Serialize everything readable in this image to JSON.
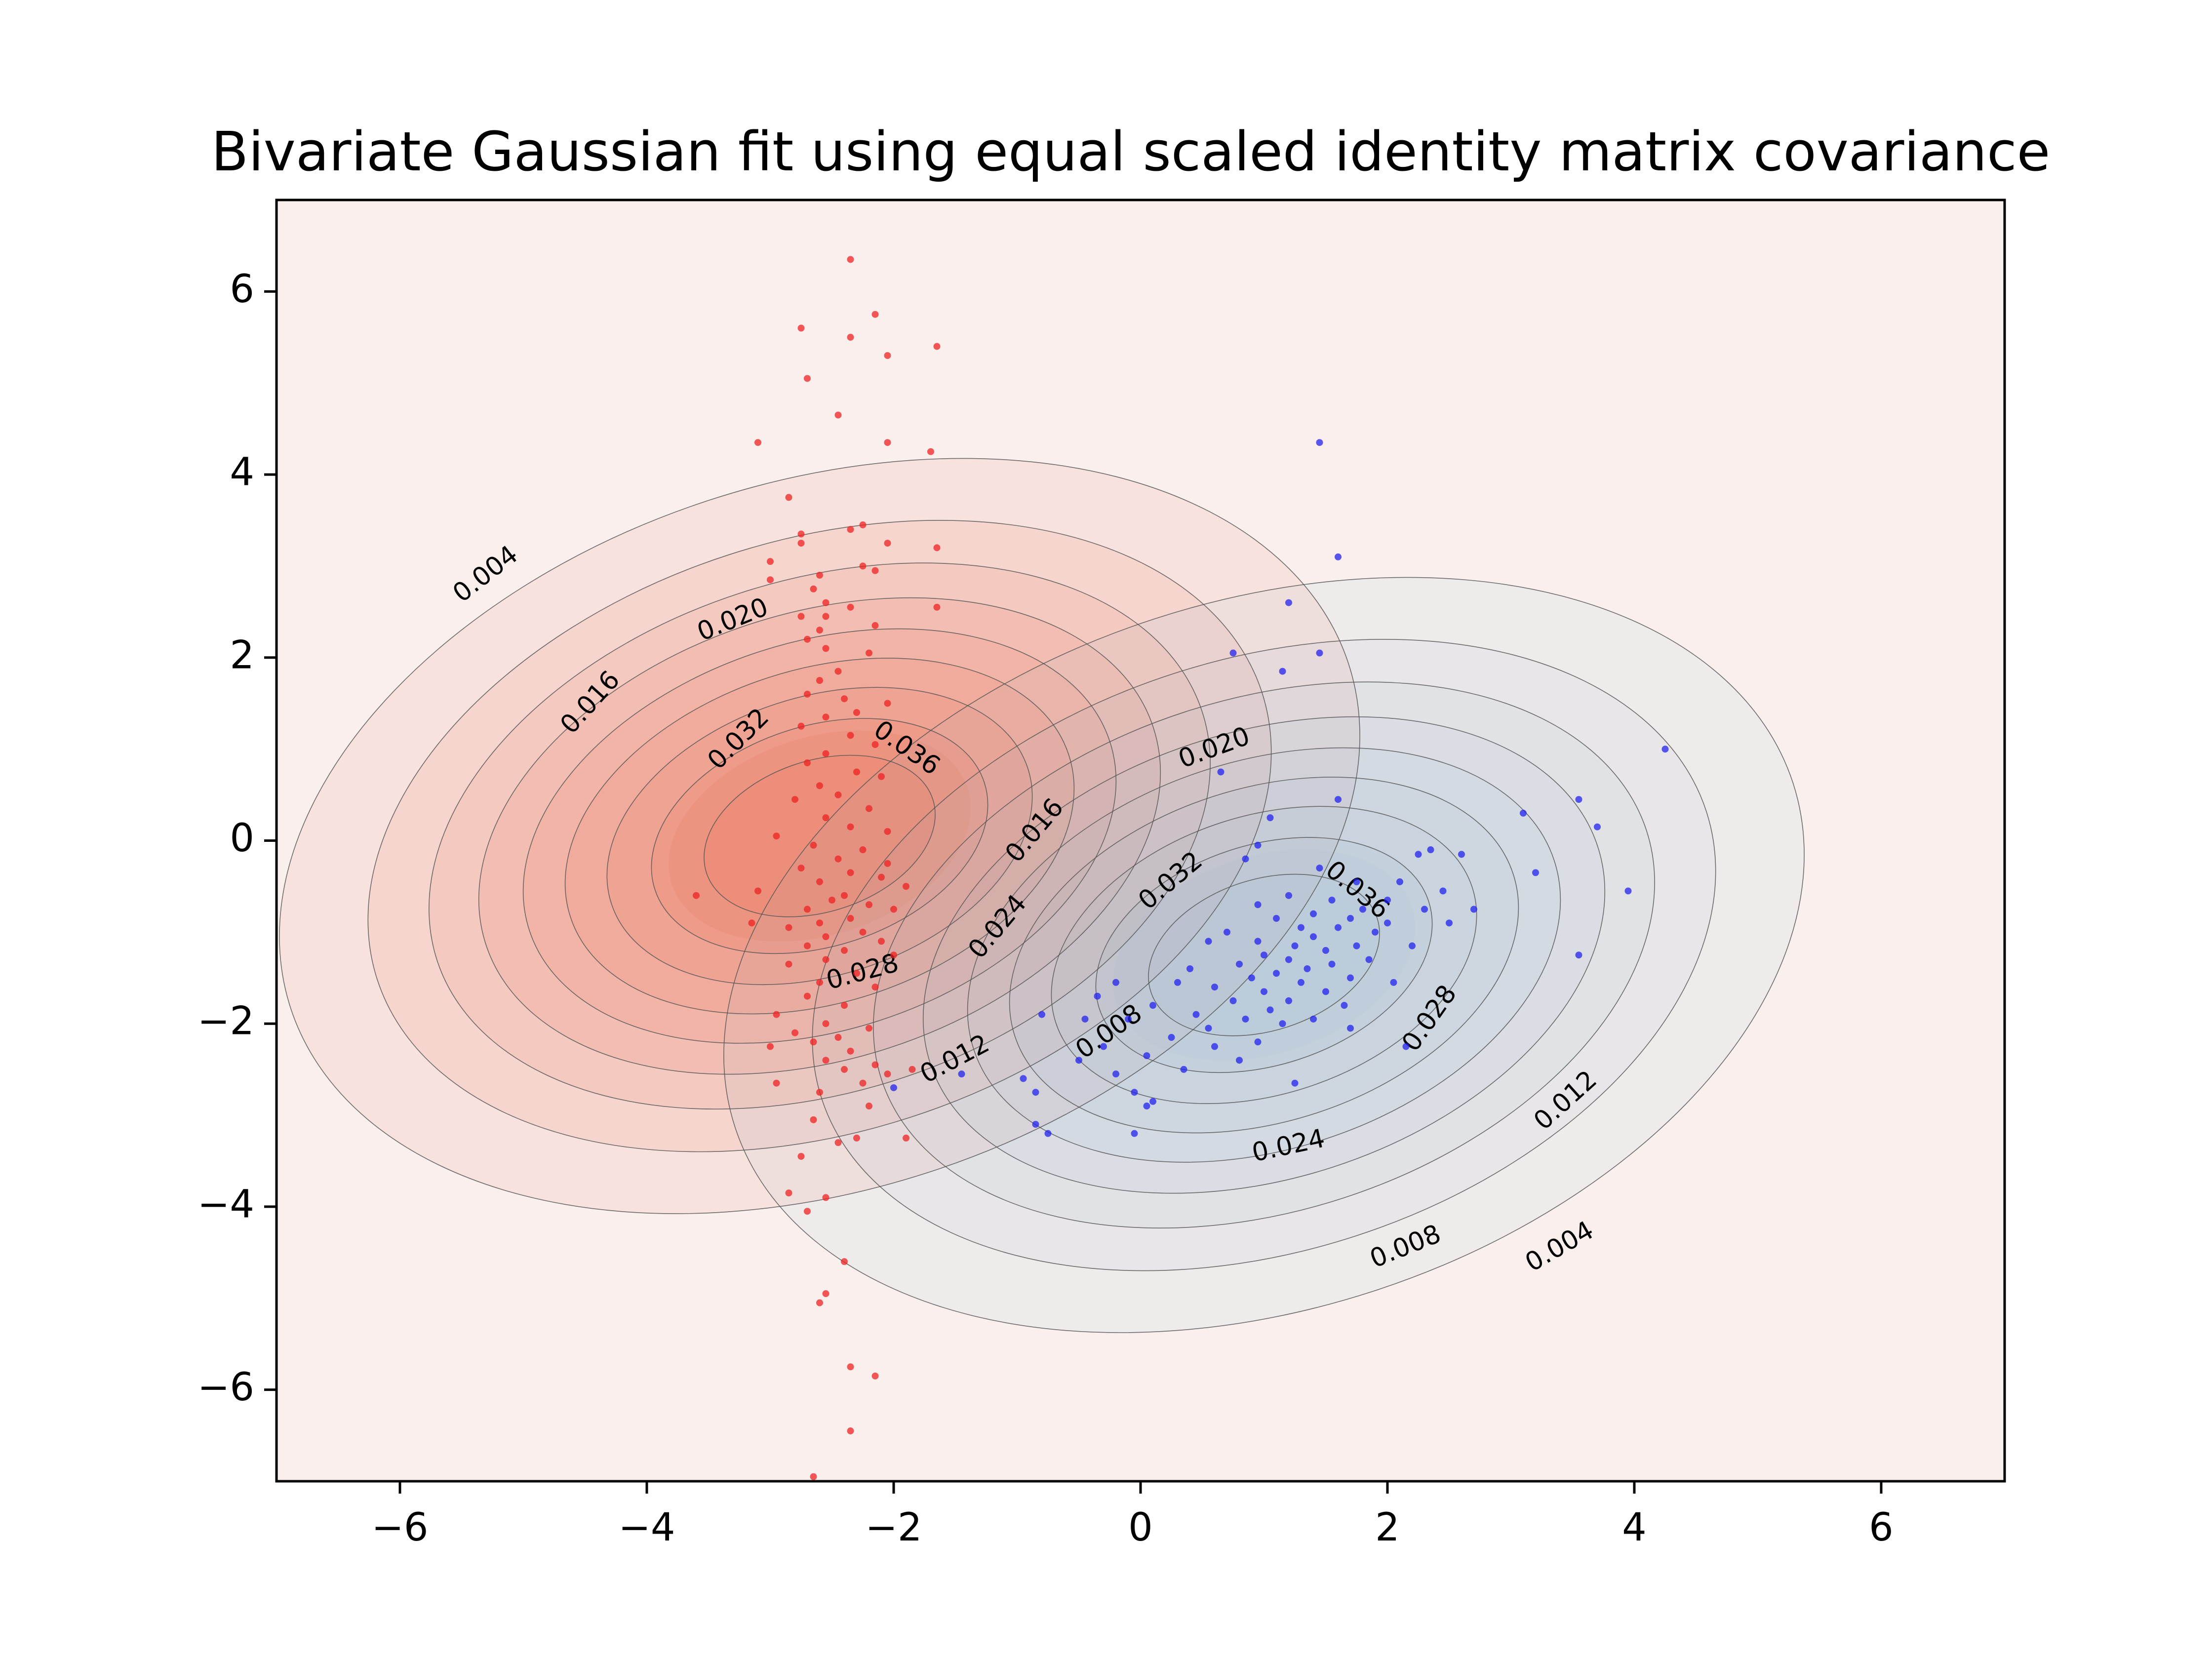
{
  "chart_data": {
    "type": "scatter",
    "title": "Bivariate Gaussian fit using equal scaled identity matrix covariance",
    "xlabel": "",
    "ylabel": "",
    "xlim": [
      -7,
      7
    ],
    "ylim": [
      -7,
      7
    ],
    "x_ticks": [
      -6,
      -4,
      -2,
      0,
      2,
      4,
      6
    ],
    "y_ticks": [
      -6,
      -4,
      -2,
      0,
      2,
      4,
      6
    ],
    "x_tick_labels": [
      "−6",
      "−4",
      "−2",
      "0",
      "2",
      "4",
      "6"
    ],
    "y_tick_labels": [
      "−6",
      "−4",
      "−2",
      "0",
      "2",
      "4",
      "6"
    ],
    "background_color": "#f9f0ee",
    "grid": false,
    "legend": "none",
    "contour_levels": [
      0.004,
      0.008,
      0.012,
      0.016,
      0.02,
      0.024,
      0.028,
      0.032,
      0.036
    ],
    "contour_line_color": "#555555",
    "distributions": [
      {
        "color": "#e8502c",
        "point_color": "#ee2222",
        "fit_center": [
          -2.6,
          0.05
        ],
        "fit_scale_x": 2.1,
        "fit_scale_y": 1.8,
        "orientation_deg": 18
      },
      {
        "color": "#9ab7d5",
        "point_color": "#2222ee",
        "fit_center": [
          1.0,
          -1.25
        ],
        "fit_scale_x": 2.1,
        "fit_scale_y": 1.8,
        "orientation_deg": 18
      }
    ],
    "contour_labels": [
      {
        "text": "0.004",
        "x": -5.3,
        "y": 2.9,
        "angle": -38
      },
      {
        "text": "0.020",
        "x": -3.3,
        "y": 2.4,
        "angle": -22
      },
      {
        "text": "0.016",
        "x": -4.45,
        "y": 1.5,
        "angle": -48
      },
      {
        "text": "0.032",
        "x": -3.25,
        "y": 1.1,
        "angle": -45
      },
      {
        "text": "0.036",
        "x": -1.9,
        "y": 1.0,
        "angle": 35
      },
      {
        "text": "0.016",
        "x": -0.85,
        "y": 0.1,
        "angle": -50
      },
      {
        "text": "0.024",
        "x": -1.15,
        "y": -0.95,
        "angle": -50
      },
      {
        "text": "0.028",
        "x": -2.25,
        "y": -1.45,
        "angle": -15
      },
      {
        "text": "0.020",
        "x": 0.6,
        "y": 1.0,
        "angle": -20
      },
      {
        "text": "0.032",
        "x": 0.25,
        "y": -0.45,
        "angle": -40
      },
      {
        "text": "0.036",
        "x": 1.75,
        "y": -0.55,
        "angle": 40
      },
      {
        "text": "0.012",
        "x": -1.5,
        "y": -2.4,
        "angle": -28
      },
      {
        "text": "0.008",
        "x": -0.25,
        "y": -2.1,
        "angle": -35
      },
      {
        "text": "0.028",
        "x": 2.35,
        "y": -1.95,
        "angle": -55
      },
      {
        "text": "0.024",
        "x": 1.2,
        "y": -3.35,
        "angle": -12
      },
      {
        "text": "0.012",
        "x": 3.45,
        "y": -2.85,
        "angle": -42
      },
      {
        "text": "0.008",
        "x": 2.15,
        "y": -4.45,
        "angle": -22
      },
      {
        "text": "0.004",
        "x": 3.4,
        "y": -4.45,
        "angle": -30
      }
    ],
    "series": [
      {
        "name": "red",
        "points": [
          [
            -2.35,
            6.35
          ],
          [
            -2.15,
            5.75
          ],
          [
            -2.75,
            5.6
          ],
          [
            -2.35,
            5.5
          ],
          [
            -1.65,
            5.4
          ],
          [
            -2.05,
            5.3
          ],
          [
            -2.7,
            5.05
          ],
          [
            -2.45,
            4.65
          ],
          [
            -2.05,
            4.35
          ],
          [
            -3.1,
            4.35
          ],
          [
            -1.7,
            4.25
          ],
          [
            -2.85,
            3.75
          ],
          [
            -2.75,
            3.35
          ],
          [
            -2.25,
            3.45
          ],
          [
            -2.35,
            3.4
          ],
          [
            -2.05,
            3.25
          ],
          [
            -1.65,
            3.2
          ],
          [
            -2.75,
            3.25
          ],
          [
            -3.0,
            3.05
          ],
          [
            -2.25,
            3.0
          ],
          [
            -2.15,
            2.95
          ],
          [
            -2.6,
            2.9
          ],
          [
            -3.0,
            2.85
          ],
          [
            -2.65,
            2.75
          ],
          [
            -2.55,
            2.6
          ],
          [
            -2.35,
            2.55
          ],
          [
            -1.65,
            2.55
          ],
          [
            -2.75,
            2.45
          ],
          [
            -2.55,
            2.45
          ],
          [
            -2.15,
            2.35
          ],
          [
            -2.6,
            2.3
          ],
          [
            -2.7,
            2.2
          ],
          [
            -2.55,
            2.1
          ],
          [
            -2.2,
            2.05
          ],
          [
            -2.45,
            1.85
          ],
          [
            -2.6,
            1.75
          ],
          [
            -2.7,
            1.6
          ],
          [
            -2.4,
            1.55
          ],
          [
            -2.05,
            1.5
          ],
          [
            -2.3,
            1.4
          ],
          [
            -2.55,
            1.35
          ],
          [
            -2.75,
            1.25
          ],
          [
            -2.35,
            1.15
          ],
          [
            -2.15,
            1.05
          ],
          [
            -2.55,
            0.95
          ],
          [
            -2.7,
            0.85
          ],
          [
            -2.3,
            0.75
          ],
          [
            -2.1,
            0.7
          ],
          [
            -2.6,
            0.6
          ],
          [
            -2.45,
            0.5
          ],
          [
            -2.8,
            0.45
          ],
          [
            -2.2,
            0.35
          ],
          [
            -2.55,
            0.25
          ],
          [
            -2.35,
            0.15
          ],
          [
            -2.05,
            0.1
          ],
          [
            -2.95,
            0.05
          ],
          [
            -2.65,
            -0.05
          ],
          [
            -2.25,
            -0.1
          ],
          [
            -2.45,
            -0.2
          ],
          [
            -2.05,
            -0.25
          ],
          [
            -2.75,
            -0.3
          ],
          [
            -2.35,
            -0.35
          ],
          [
            -2.1,
            -0.4
          ],
          [
            -2.6,
            -0.45
          ],
          [
            -1.9,
            -0.5
          ],
          [
            -3.1,
            -0.55
          ],
          [
            -2.4,
            -0.6
          ],
          [
            -3.6,
            -0.6
          ],
          [
            -2.5,
            -0.65
          ],
          [
            -2.2,
            -0.7
          ],
          [
            -2.7,
            -0.75
          ],
          [
            -2.0,
            -0.75
          ],
          [
            -2.35,
            -0.85
          ],
          [
            -2.6,
            -0.9
          ],
          [
            -3.15,
            -0.9
          ],
          [
            -2.85,
            -0.95
          ],
          [
            -2.25,
            -1.0
          ],
          [
            -2.55,
            -1.05
          ],
          [
            -2.1,
            -1.1
          ],
          [
            -2.7,
            -1.15
          ],
          [
            -2.4,
            -1.2
          ],
          [
            -2.0,
            -1.25
          ],
          [
            -2.55,
            -1.3
          ],
          [
            -2.85,
            -1.35
          ],
          [
            -2.3,
            -1.45
          ],
          [
            -2.6,
            -1.55
          ],
          [
            -2.15,
            -1.6
          ],
          [
            -2.7,
            -1.7
          ],
          [
            -2.4,
            -1.8
          ],
          [
            -2.95,
            -1.9
          ],
          [
            -2.55,
            -2.0
          ],
          [
            -2.2,
            -2.05
          ],
          [
            -2.8,
            -2.1
          ],
          [
            -2.45,
            -2.15
          ],
          [
            -2.65,
            -2.2
          ],
          [
            -3.0,
            -2.25
          ],
          [
            -2.35,
            -2.3
          ],
          [
            -2.55,
            -2.4
          ],
          [
            -2.15,
            -2.45
          ],
          [
            -2.4,
            -2.5
          ],
          [
            -1.85,
            -2.5
          ],
          [
            -2.05,
            -2.55
          ],
          [
            -2.25,
            -2.65
          ],
          [
            -2.6,
            -2.75
          ],
          [
            -2.95,
            -2.65
          ],
          [
            -2.2,
            -2.9
          ],
          [
            -2.65,
            -3.05
          ],
          [
            -2.3,
            -3.25
          ],
          [
            -2.45,
            -3.3
          ],
          [
            -1.9,
            -3.25
          ],
          [
            -2.75,
            -3.45
          ],
          [
            -2.85,
            -3.85
          ],
          [
            -2.55,
            -3.9
          ],
          [
            -2.7,
            -4.05
          ],
          [
            -2.4,
            -4.6
          ],
          [
            -2.55,
            -4.95
          ],
          [
            -2.6,
            -5.05
          ],
          [
            -2.35,
            -5.75
          ],
          [
            -2.15,
            -5.85
          ],
          [
            -2.35,
            -6.45
          ],
          [
            -2.65,
            -6.95
          ]
        ]
      },
      {
        "name": "blue",
        "points": [
          [
            1.45,
            4.35
          ],
          [
            1.6,
            3.1
          ],
          [
            1.2,
            2.6
          ],
          [
            0.75,
            2.05
          ],
          [
            1.45,
            2.05
          ],
          [
            1.15,
            1.85
          ],
          [
            4.25,
            1.0
          ],
          [
            0.65,
            0.75
          ],
          [
            1.6,
            0.45
          ],
          [
            3.55,
            0.45
          ],
          [
            3.1,
            0.3
          ],
          [
            1.05,
            0.25
          ],
          [
            3.7,
            0.15
          ],
          [
            0.95,
            -0.05
          ],
          [
            0.85,
            -0.2
          ],
          [
            2.25,
            -0.15
          ],
          [
            2.35,
            -0.1
          ],
          [
            2.6,
            -0.15
          ],
          [
            1.45,
            -0.3
          ],
          [
            3.2,
            -0.35
          ],
          [
            1.75,
            -0.45
          ],
          [
            2.1,
            -0.45
          ],
          [
            2.45,
            -0.55
          ],
          [
            3.95,
            -0.55
          ],
          [
            1.2,
            -0.6
          ],
          [
            1.55,
            -0.65
          ],
          [
            2.0,
            -0.65
          ],
          [
            1.8,
            -0.75
          ],
          [
            2.3,
            -0.75
          ],
          [
            0.95,
            -0.7
          ],
          [
            1.4,
            -0.8
          ],
          [
            2.7,
            -0.75
          ],
          [
            1.7,
            -0.85
          ],
          [
            1.1,
            -0.85
          ],
          [
            2.0,
            -0.9
          ],
          [
            1.3,
            -0.95
          ],
          [
            1.6,
            -0.95
          ],
          [
            0.7,
            -1.0
          ],
          [
            2.5,
            -0.9
          ],
          [
            1.9,
            -1.0
          ],
          [
            1.4,
            -1.05
          ],
          [
            0.95,
            -1.1
          ],
          [
            1.25,
            -1.15
          ],
          [
            1.75,
            -1.15
          ],
          [
            2.2,
            -1.15
          ],
          [
            0.55,
            -1.1
          ],
          [
            1.5,
            -1.2
          ],
          [
            1.0,
            -1.25
          ],
          [
            1.85,
            -1.3
          ],
          [
            1.2,
            -1.3
          ],
          [
            3.55,
            -1.25
          ],
          [
            0.8,
            -1.35
          ],
          [
            1.55,
            -1.35
          ],
          [
            1.35,
            -1.4
          ],
          [
            0.4,
            -1.4
          ],
          [
            1.1,
            -1.45
          ],
          [
            1.7,
            -1.5
          ],
          [
            0.9,
            -1.5
          ],
          [
            2.05,
            -1.55
          ],
          [
            1.3,
            -1.55
          ],
          [
            0.6,
            -1.6
          ],
          [
            1.0,
            -1.65
          ],
          [
            1.5,
            -1.65
          ],
          [
            -0.2,
            -1.55
          ],
          [
            0.3,
            -1.55
          ],
          [
            1.2,
            -1.75
          ],
          [
            0.75,
            -1.75
          ],
          [
            1.65,
            -1.8
          ],
          [
            -0.35,
            -1.7
          ],
          [
            0.1,
            -1.8
          ],
          [
            1.05,
            -1.85
          ],
          [
            0.45,
            -1.9
          ],
          [
            1.4,
            -1.95
          ],
          [
            -0.1,
            -1.95
          ],
          [
            0.85,
            -1.95
          ],
          [
            -0.8,
            -1.9
          ],
          [
            -0.45,
            -1.95
          ],
          [
            0.55,
            -2.05
          ],
          [
            1.15,
            -2.0
          ],
          [
            1.7,
            -2.05
          ],
          [
            0.25,
            -2.15
          ],
          [
            0.95,
            -2.2
          ],
          [
            -0.3,
            -2.25
          ],
          [
            0.6,
            -2.25
          ],
          [
            2.15,
            -2.25
          ],
          [
            0.05,
            -2.35
          ],
          [
            0.8,
            -2.4
          ],
          [
            -0.5,
            -2.4
          ],
          [
            -0.2,
            -2.55
          ],
          [
            0.35,
            -2.5
          ],
          [
            -1.45,
            -2.55
          ],
          [
            -0.95,
            -2.6
          ],
          [
            -2.0,
            -2.7
          ],
          [
            1.25,
            -2.65
          ],
          [
            -0.05,
            -2.75
          ],
          [
            -0.85,
            -2.75
          ],
          [
            0.1,
            -2.85
          ],
          [
            0.05,
            -2.9
          ],
          [
            -0.85,
            -3.1
          ],
          [
            -0.75,
            -3.2
          ],
          [
            -0.05,
            -3.2
          ]
        ]
      }
    ]
  }
}
